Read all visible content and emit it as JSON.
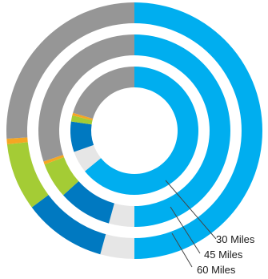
{
  "chart_data": {
    "type": "pie",
    "title": "",
    "segment_colors": [
      "#00aeef",
      "#e6e6e6",
      "#0079c1",
      "#a4cc35",
      "#f5a623",
      "#969696"
    ],
    "series": [
      {
        "name": "30 Miles",
        "values": [
          50.0,
          4.3,
          6.0,
          1.2,
          0.5,
          16.0
        ]
      },
      {
        "name": "45 Miles",
        "values": [
          50.0,
          4.3,
          9.0,
          6.0,
          0.5,
          30.2
        ]
      },
      {
        "name": "60 Miles",
        "values": [
          50.0,
          4.3,
          10.5,
          8.5,
          0.7,
          26.0
        ]
      }
    ],
    "grid": false,
    "legend": "none"
  }
}
